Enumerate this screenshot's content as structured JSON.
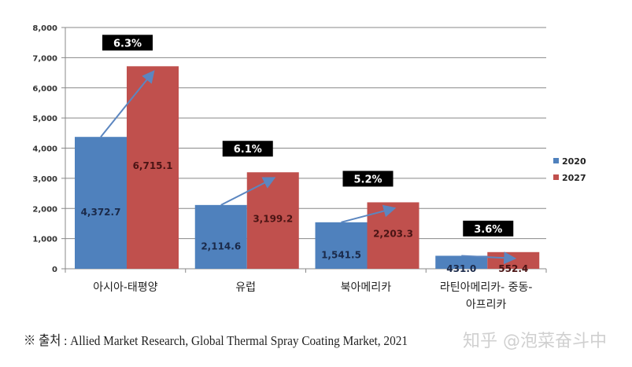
{
  "chart_data": {
    "type": "bar",
    "categories": [
      "아시아-태평양",
      "유럽",
      "북아메리카",
      "라틴아메리카- 중동-\n아프리카"
    ],
    "series": [
      {
        "name": "2020",
        "values": [
          4372.7,
          2114.6,
          1541.5,
          431.0
        ],
        "color": "#4f81bd",
        "labels": [
          "4,372.7",
          "2,114.6",
          "1,541.5",
          "431.0"
        ]
      },
      {
        "name": "2027",
        "values": [
          6715.1,
          3199.2,
          2203.3,
          552.4
        ],
        "color": "#c0504d",
        "labels": [
          "6,715.1",
          "3,199.2",
          "2,203.3",
          "552.4"
        ]
      }
    ],
    "growth_labels": [
      "6.3%",
      "6.1%",
      "5.2%",
      "3.6%"
    ],
    "ylim": [
      0,
      8000
    ],
    "yticks": [
      "0",
      "1,000",
      "2,000",
      "3,000",
      "4,000",
      "5,000",
      "6,000",
      "7,000",
      "8,000"
    ],
    "grid": true,
    "legend": "right"
  },
  "footnote": "※ 출처 : Allied Market Research, Global Thermal Spray Coating Market, 2021",
  "watermark": "知乎 @泡菜奋斗中"
}
